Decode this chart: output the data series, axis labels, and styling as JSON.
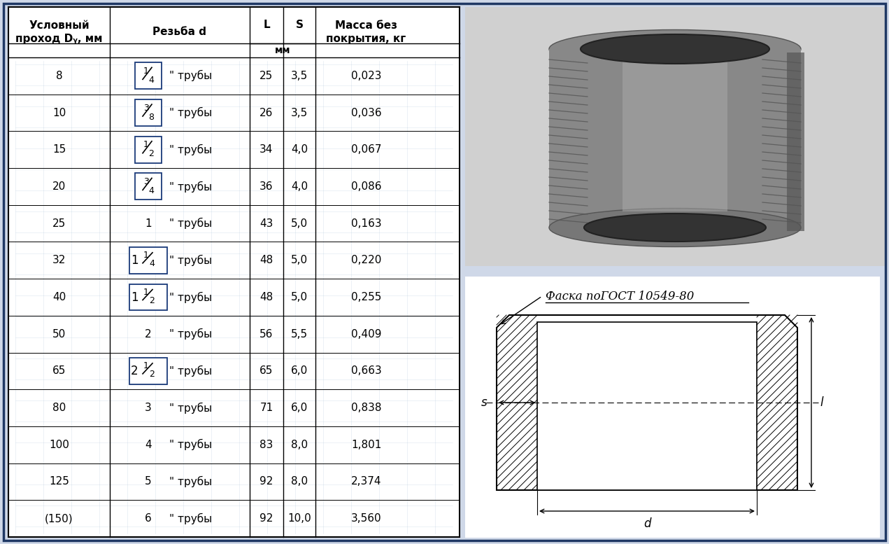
{
  "bg_color": "#cfd8e8",
  "border_color": "#1f3864",
  "rows": [
    [
      "8",
      "1/4",
      "25",
      "3,5",
      "0,023"
    ],
    [
      "10",
      "3/8",
      "26",
      "3,5",
      "0,036"
    ],
    [
      "15",
      "1/2",
      "34",
      "4,0",
      "0,067"
    ],
    [
      "20",
      "3/4",
      "36",
      "4,0",
      "0,086"
    ],
    [
      "25",
      "1",
      "43",
      "5,0",
      "0,163"
    ],
    [
      "32",
      "1 1/4",
      "48",
      "5,0",
      "0,220"
    ],
    [
      "40",
      "1 1/2",
      "48",
      "5,0",
      "0,255"
    ],
    [
      "50",
      "2",
      "56",
      "5,5",
      "0,409"
    ],
    [
      "65",
      "2 1/2",
      "65",
      "6,0",
      "0,663"
    ],
    [
      "80",
      "3",
      "71",
      "6,0",
      "0,838"
    ],
    [
      "100",
      "4",
      "83",
      "8,0",
      "1,801"
    ],
    [
      "125",
      "5",
      "92",
      "8,0",
      "2,374"
    ],
    [
      "(150)",
      "6",
      "92",
      "10,0",
      "3,560"
    ]
  ],
  "boxed_fractions": [
    "1/4",
    "3/8",
    "1/2",
    "3/4",
    "1 1/4",
    "1 1/2",
    "2 1/2"
  ],
  "diagram_label": "Фаска поГОСТ 10549-80"
}
